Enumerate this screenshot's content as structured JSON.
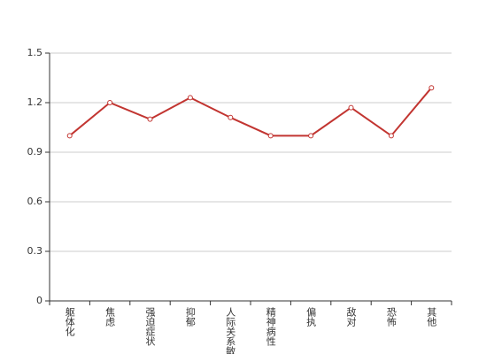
{
  "chart_data": {
    "type": "line",
    "categories": [
      "躯体化",
      "焦虑",
      "强迫症状",
      "抑郁",
      "人际关系敏感",
      "精神病性",
      "偏执",
      "敌对",
      "恐怖",
      "其他"
    ],
    "values": [
      1.0,
      1.2,
      1.1,
      1.23,
      1.11,
      1.0,
      1.0,
      1.17,
      1.0,
      1.29
    ],
    "color": "#c23531",
    "ylim": [
      0,
      1.5
    ],
    "yticks": [
      0,
      {
        "value": 0.3,
        "label": "0.3"
      },
      {
        "value": 0.6,
        "label": "0.6"
      },
      {
        "value": 0.9,
        "label": "0.9"
      },
      {
        "value": 1.2,
        "label": "1.2"
      },
      {
        "value": 1.5,
        "label": "1.5"
      }
    ],
    "grid": true
  }
}
